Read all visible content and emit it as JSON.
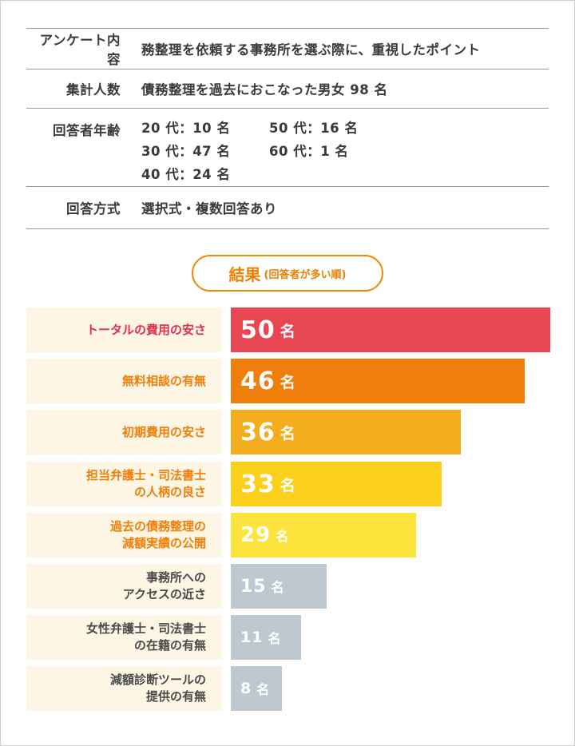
{
  "survey_info": {
    "rows": [
      {
        "label": "アンケート内容",
        "value": "務整理を依頼する事務所を選ぶ際に、重視したポイント"
      },
      {
        "label": "集計人数",
        "value": "債務整理を過去におこなった男女 98 名"
      },
      {
        "label": "回答者年齢",
        "ages": [
          "20 代：10 名",
          "50 代：16 名",
          "30 代：47 名",
          "60 代：1 名",
          "40 代：24 名"
        ]
      },
      {
        "label": "回答方式",
        "value": "選択式・複数回答あり"
      }
    ]
  },
  "result_header": {
    "title": "結果",
    "subtitle": "(回答者が多い順)"
  },
  "chart_data": {
    "type": "bar",
    "orientation": "horizontal",
    "unit": "名",
    "xlim": [
      0,
      50
    ],
    "categories": [
      "トータルの費用の安さ",
      "無料相談の有無",
      "初期費用の安さ",
      "担当弁護士・司法書士\nの人柄の良さ",
      "過去の債務整理の\n減額実績の公開",
      "事務所への\nアクセスの近さ",
      "女性弁護士・司法書士\nの在籍の有無",
      "減額診断ツールの\n提供の有無"
    ],
    "values": [
      50,
      46,
      36,
      33,
      29,
      15,
      11,
      8
    ],
    "bar_colors": [
      "#e84653",
      "#ef7f0a",
      "#f3ad1e",
      "#fbd01a",
      "#fde43d",
      "#bdc8d1",
      "#bdc8d1",
      "#bdc8d1"
    ],
    "label_colors": [
      "#e0304a",
      "#ef7f0a",
      "#ef7f0a",
      "#ef7f0a",
      "#ef7f0a",
      "#4a4a4a",
      "#4a4a4a",
      "#4a4a4a"
    ]
  },
  "colors": {
    "accent": "#ee7f00",
    "label_bg": "#fdf6e4",
    "rule": "#9a9a9a"
  }
}
